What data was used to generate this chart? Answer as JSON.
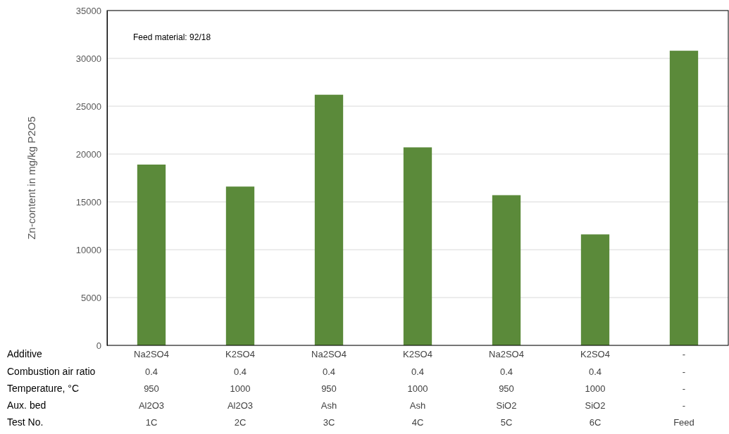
{
  "chart_data": {
    "type": "bar",
    "ylabel": "Zn-content in mg/kg P2O5",
    "categories": [
      "Na2SO4\n0.4\n950\nAl2O3\n1C",
      "K2SO4\n0.4\n1000\nAl2O3\n2C",
      "Na2SO4\n0.4\n950\nAsh\n3C",
      "K2SO4\n0.4\n1000\nAsh\n4C",
      "Na2SO4\n0.4\n950\nSiO2\n5C",
      "K2SO4\n0.4\n1000\nSiO2\n6C",
      "-\n-\n-\n-\nFeed"
    ],
    "values": [
      18900,
      16600,
      26200,
      20700,
      15700,
      11600,
      30800
    ],
    "color": "#5b8a3a",
    "ylim": [
      0,
      35000
    ],
    "yticks": [
      0,
      5000,
      10000,
      15000,
      20000,
      25000,
      30000,
      35000
    ],
    "grid": "y",
    "annotations": [
      "Feed material: 92/18",
      "Additive",
      "Combustion air ratio",
      "Temperature, °C",
      "Aux. bed",
      "Test No."
    ]
  }
}
